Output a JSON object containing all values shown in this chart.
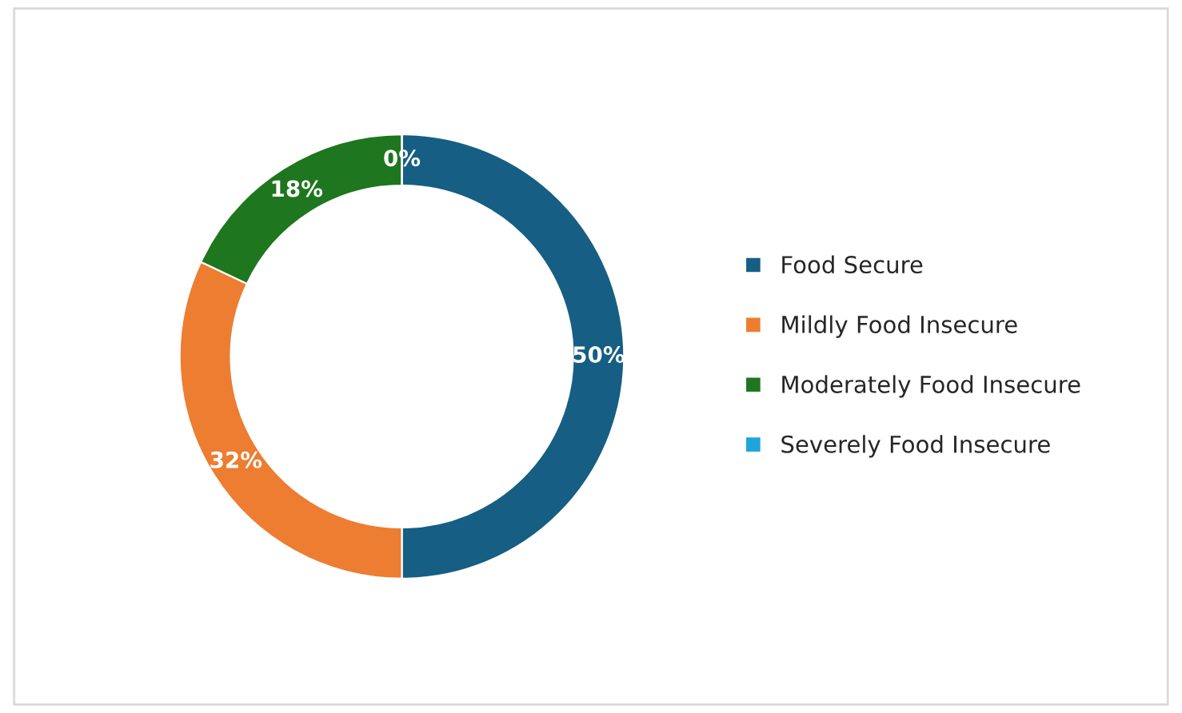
{
  "chart_data": {
    "type": "donut",
    "categories": [
      "Food Secure",
      "Mildly Food Insecure",
      "Moderately Food Insecure",
      "Severely Food Insecure"
    ],
    "values": [
      50,
      32,
      18,
      0
    ],
    "value_labels": [
      "50%",
      "32%",
      "18%",
      "0%"
    ],
    "colors": [
      "#165e83",
      "#ed7d31",
      "#1e761e",
      "#1ea5dc"
    ],
    "legend": "right"
  }
}
